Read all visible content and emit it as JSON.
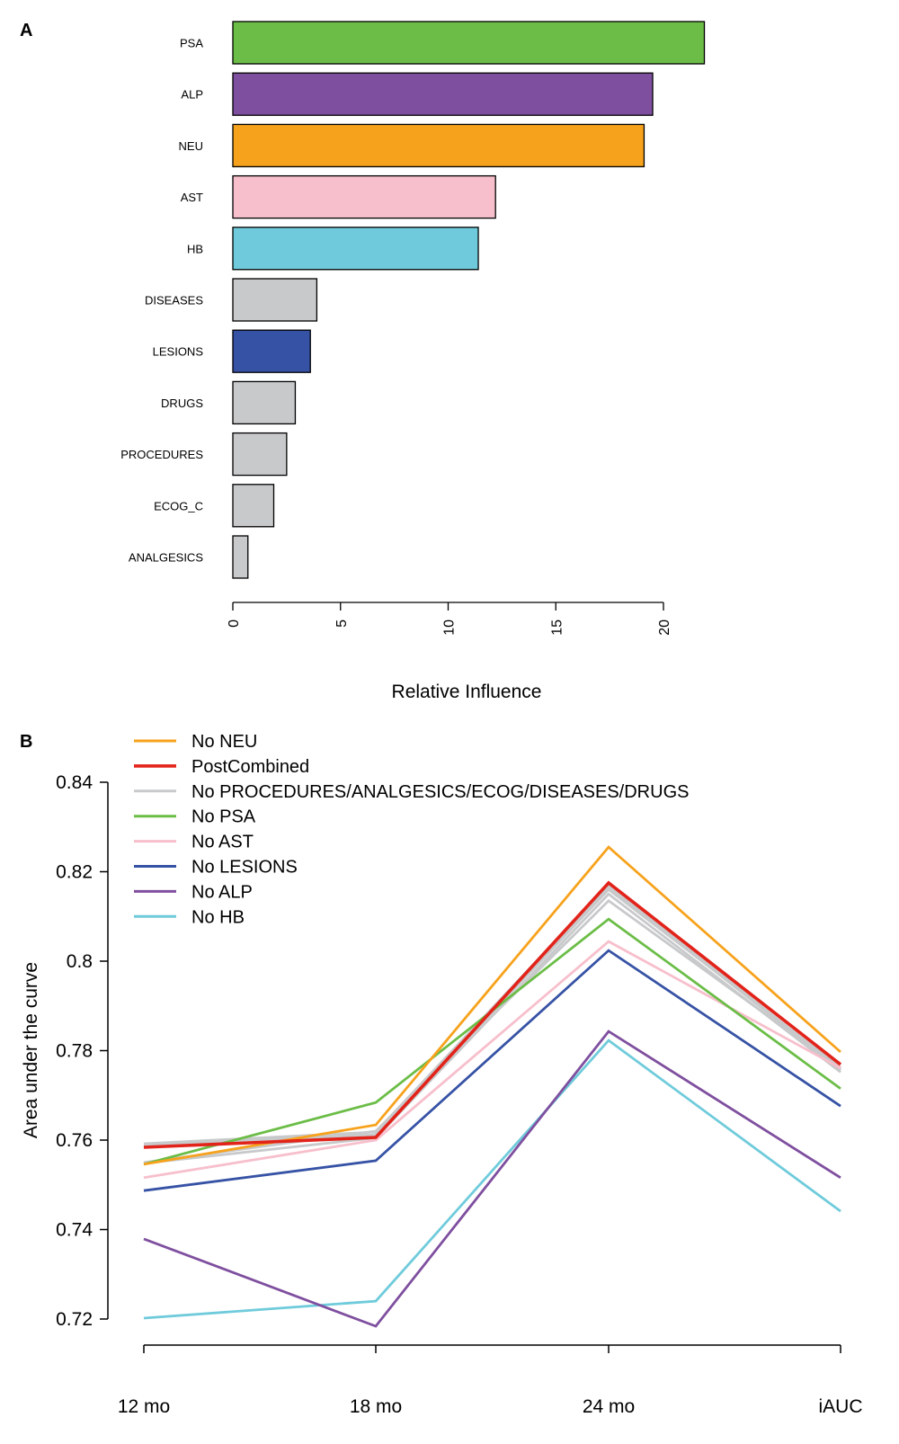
{
  "chart_data": [
    {
      "panel": "A",
      "type": "bar",
      "orientation": "horizontal",
      "title": "",
      "xlabel": "Relative Influence",
      "ylabel": "",
      "xlim": [
        0,
        22
      ],
      "xticks": [
        0,
        5,
        10,
        15,
        20
      ],
      "xtick_labels": [
        "0",
        "5",
        "10",
        "15",
        "20"
      ],
      "grid": false,
      "categories": [
        "PSA",
        "ALP",
        "NEU",
        "AST",
        "HB",
        "DISEASES",
        "LESIONS",
        "DRUGS",
        "PROCEDURES",
        "ECOG_C",
        "ANALGESICS"
      ],
      "values": [
        21.9,
        19.5,
        19.1,
        12.2,
        11.4,
        3.9,
        3.6,
        2.9,
        2.5,
        1.9,
        0.7
      ],
      "colors": [
        "#6bbd47",
        "#7f4f9f",
        "#f7a21c",
        "#f7bfcc",
        "#6fcbdb",
        "#c8c9cb",
        "#3652a5",
        "#c8c9cb",
        "#c8c9cb",
        "#c8c9cb",
        "#c8c9cb"
      ]
    },
    {
      "panel": "B",
      "type": "line",
      "title": "",
      "xlabel": "",
      "ylabel": "Area under the curve",
      "categories": [
        "12 mo",
        "18 mo",
        "24 mo",
        "iAUC"
      ],
      "ylim": [
        0.72,
        0.84
      ],
      "yticks": [
        0.72,
        0.74,
        0.76,
        0.78,
        0.8,
        0.82,
        0.84
      ],
      "ytick_labels": [
        "0.72",
        "0.74",
        "0.76",
        "0.78",
        "0.8",
        "0.82",
        "0.84"
      ],
      "grid": false,
      "legend_position": "top-left",
      "legend": [
        {
          "name": "No NEU",
          "color": "#f7a21c"
        },
        {
          "name": "PostCombined",
          "color": "#e2231a"
        },
        {
          "name": "No PROCEDURES/ANALGESICS/ECOG/DISEASES/DRUGS",
          "color": "#c8c9cb"
        },
        {
          "name": "No PSA",
          "color": "#6bbd47"
        },
        {
          "name": "No AST",
          "color": "#f7bfcc"
        },
        {
          "name": "No LESIONS",
          "color": "#3652a5"
        },
        {
          "name": "No ALP",
          "color": "#7f4f9f"
        },
        {
          "name": "No HB",
          "color": "#6fcbdb"
        }
      ],
      "series": [
        {
          "name": "No PROCEDURES",
          "color": "#c8c9cb",
          "values": [
            0.7592,
            0.7618,
            0.8172,
            0.7758
          ]
        },
        {
          "name": "No ANALGESICS",
          "color": "#c8c9cb",
          "values": [
            0.759,
            0.7612,
            0.816,
            0.7762
          ]
        },
        {
          "name": "No ECOG",
          "color": "#c8c9cb",
          "values": [
            0.7548,
            0.7605,
            0.815,
            0.7752
          ]
        },
        {
          "name": "No DISEASES",
          "color": "#c8c9cb",
          "values": [
            0.755,
            0.762,
            0.8135,
            0.776
          ]
        },
        {
          "name": "No DRUGS",
          "color": "#c8c9cb",
          "values": [
            0.7587,
            0.7608,
            0.8165,
            0.7756
          ]
        },
        {
          "name": "No HB",
          "color": "#6fcbdb",
          "values": [
            0.7202,
            0.724,
            0.7823,
            0.7441
          ]
        },
        {
          "name": "No ALP",
          "color": "#7f4f9f",
          "values": [
            0.7379,
            0.7184,
            0.7843,
            0.7516
          ]
        },
        {
          "name": "No LESIONS",
          "color": "#3652a5",
          "values": [
            0.7487,
            0.7554,
            0.8024,
            0.7676
          ]
        },
        {
          "name": "No AST",
          "color": "#f7bfcc",
          "values": [
            0.7516,
            0.76,
            0.8044,
            0.7761
          ]
        },
        {
          "name": "No PSA",
          "color": "#6bbd47",
          "values": [
            0.7546,
            0.7684,
            0.8094,
            0.7715
          ]
        },
        {
          "name": "No NEU",
          "color": "#f7a21c",
          "values": [
            0.7546,
            0.7634,
            0.8255,
            0.7797
          ]
        },
        {
          "name": "PostCombined",
          "color": "#e2231a",
          "values": [
            0.7584,
            0.7606,
            0.8175,
            0.7769
          ]
        }
      ]
    }
  ],
  "panel_labels": {
    "a": "A",
    "b": "B"
  }
}
